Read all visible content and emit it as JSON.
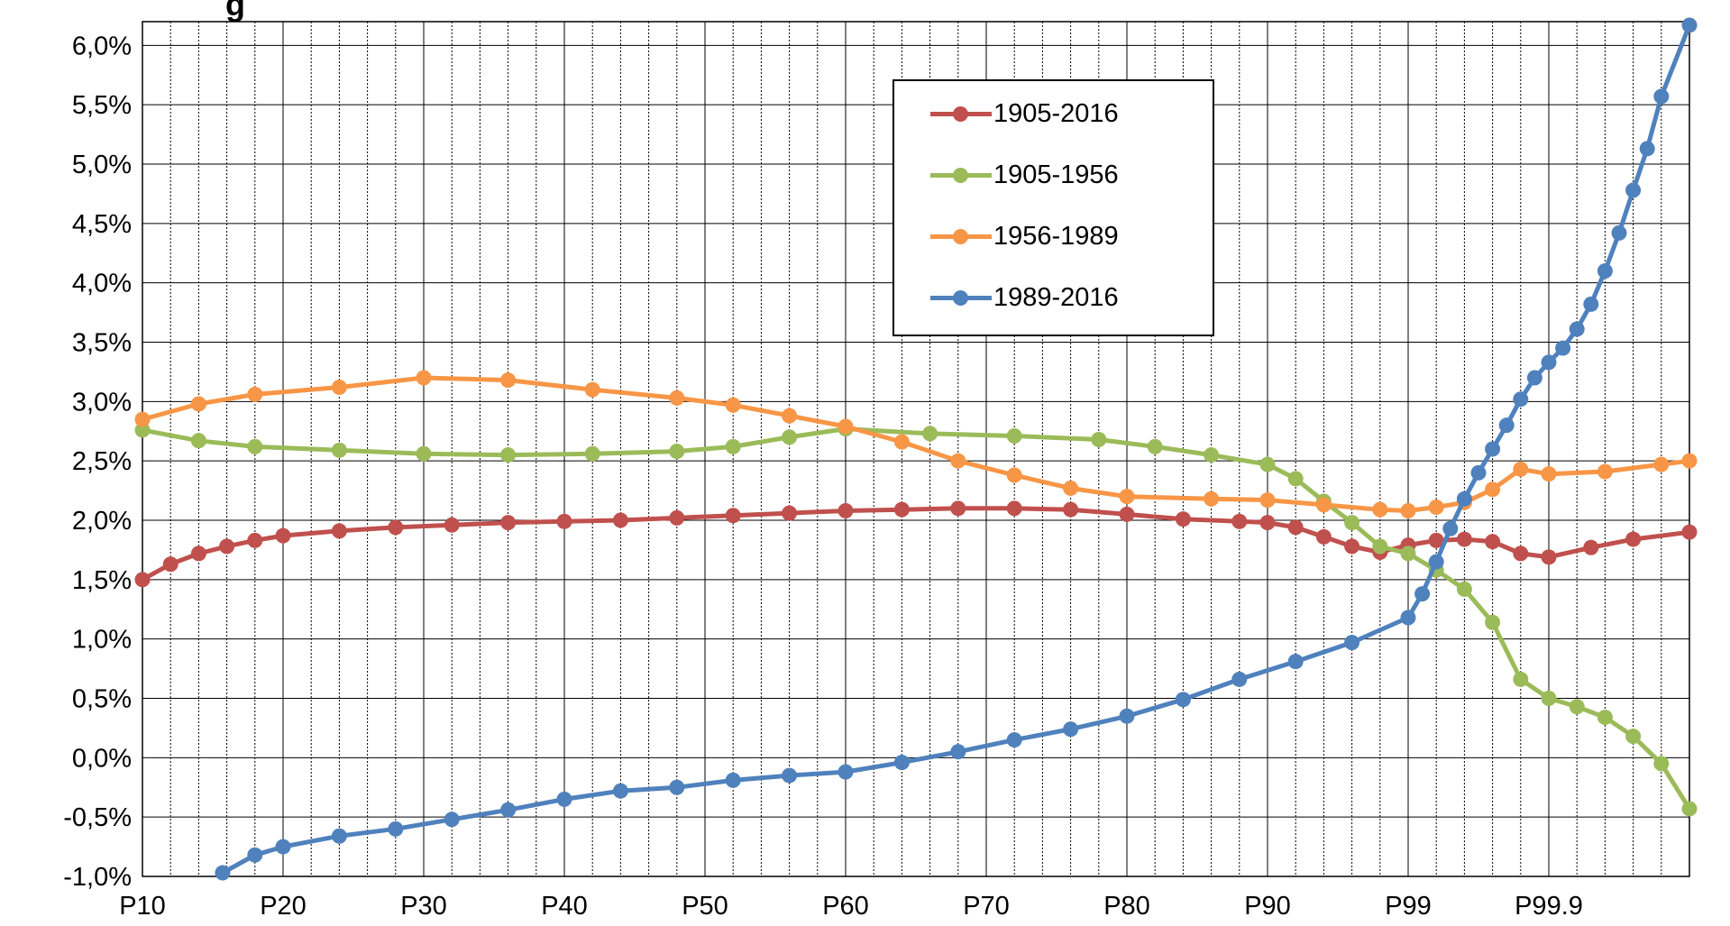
{
  "chart_data": {
    "type": "line",
    "title": "g",
    "x_tick_labels": [
      "P10",
      "P20",
      "P30",
      "P40",
      "P50",
      "P60",
      "P70",
      "P80",
      "P90",
      "P99",
      "P99.9"
    ],
    "y_tick_labels": [
      "-1,0%",
      "-0,5%",
      "0,0%",
      "0,5%",
      "1,0%",
      "1,5%",
      "2,0%",
      "2,5%",
      "3,0%",
      "3,5%",
      "4,0%",
      "4,5%",
      "5,0%",
      "5,5%",
      "6,0%"
    ],
    "ylim": [
      -1.0,
      6.2
    ],
    "y_unit": "%",
    "grid": true,
    "legend_position": "top-center-right",
    "series": [
      {
        "name": "1905-2016",
        "color": "#C0504D",
        "points": [
          [
            0,
            1.5
          ],
          [
            0.2,
            1.63
          ],
          [
            0.4,
            1.72
          ],
          [
            0.6,
            1.78
          ],
          [
            0.8,
            1.83
          ],
          [
            1,
            1.87
          ],
          [
            1.4,
            1.91
          ],
          [
            1.8,
            1.94
          ],
          [
            2.2,
            1.96
          ],
          [
            2.6,
            1.98
          ],
          [
            3,
            1.99
          ],
          [
            3.4,
            2.0
          ],
          [
            3.8,
            2.02
          ],
          [
            4.2,
            2.04
          ],
          [
            4.6,
            2.06
          ],
          [
            5,
            2.08
          ],
          [
            5.4,
            2.09
          ],
          [
            5.8,
            2.1
          ],
          [
            6.2,
            2.1
          ],
          [
            6.6,
            2.09
          ],
          [
            7,
            2.05
          ],
          [
            7.4,
            2.01
          ],
          [
            7.8,
            1.99
          ],
          [
            8,
            1.98
          ],
          [
            8.2,
            1.94
          ],
          [
            8.4,
            1.86
          ],
          [
            8.6,
            1.78
          ],
          [
            8.8,
            1.73
          ],
          [
            9,
            1.79
          ],
          [
            9.2,
            1.83
          ],
          [
            9.4,
            1.84
          ],
          [
            9.6,
            1.82
          ],
          [
            9.8,
            1.72
          ],
          [
            10,
            1.69
          ],
          [
            10.3,
            1.77
          ],
          [
            10.6,
            1.84
          ],
          [
            11,
            1.9
          ]
        ]
      },
      {
        "name": "1905-1956",
        "color": "#9BBB59",
        "points": [
          [
            0,
            2.76
          ],
          [
            0.4,
            2.67
          ],
          [
            0.8,
            2.62
          ],
          [
            1.4,
            2.59
          ],
          [
            2,
            2.56
          ],
          [
            2.6,
            2.55
          ],
          [
            3.2,
            2.56
          ],
          [
            3.8,
            2.58
          ],
          [
            4.2,
            2.62
          ],
          [
            4.6,
            2.7
          ],
          [
            5,
            2.77
          ],
          [
            5.6,
            2.73
          ],
          [
            6.2,
            2.71
          ],
          [
            6.8,
            2.68
          ],
          [
            7.2,
            2.62
          ],
          [
            7.6,
            2.55
          ],
          [
            8,
            2.47
          ],
          [
            8.2,
            2.35
          ],
          [
            8.4,
            2.16
          ],
          [
            8.6,
            1.98
          ],
          [
            8.8,
            1.78
          ],
          [
            9,
            1.72
          ],
          [
            9.2,
            1.58
          ],
          [
            9.4,
            1.42
          ],
          [
            9.6,
            1.14
          ],
          [
            9.8,
            0.66
          ],
          [
            10,
            0.5
          ],
          [
            10.2,
            0.43
          ],
          [
            10.4,
            0.34
          ],
          [
            10.6,
            0.18
          ],
          [
            10.8,
            -0.05
          ],
          [
            11,
            -0.43
          ]
        ]
      },
      {
        "name": "1956-1989",
        "color": "#F79646",
        "points": [
          [
            0,
            2.85
          ],
          [
            0.4,
            2.98
          ],
          [
            0.8,
            3.06
          ],
          [
            1.4,
            3.12
          ],
          [
            2,
            3.2
          ],
          [
            2.6,
            3.18
          ],
          [
            3.2,
            3.1
          ],
          [
            3.8,
            3.03
          ],
          [
            4.2,
            2.97
          ],
          [
            4.6,
            2.88
          ],
          [
            5,
            2.79
          ],
          [
            5.4,
            2.66
          ],
          [
            5.8,
            2.5
          ],
          [
            6.2,
            2.38
          ],
          [
            6.6,
            2.27
          ],
          [
            7,
            2.2
          ],
          [
            7.6,
            2.18
          ],
          [
            8,
            2.17
          ],
          [
            8.4,
            2.13
          ],
          [
            8.8,
            2.09
          ],
          [
            9,
            2.08
          ],
          [
            9.2,
            2.11
          ],
          [
            9.4,
            2.15
          ],
          [
            9.6,
            2.26
          ],
          [
            9.8,
            2.43
          ],
          [
            10,
            2.39
          ],
          [
            10.4,
            2.41
          ],
          [
            10.8,
            2.47
          ],
          [
            11,
            2.5
          ]
        ]
      },
      {
        "name": "1989-2016",
        "color": "#4F81BD",
        "points": [
          [
            0.57,
            -0.97
          ],
          [
            0.8,
            -0.82
          ],
          [
            1,
            -0.75
          ],
          [
            1.4,
            -0.66
          ],
          [
            1.8,
            -0.6
          ],
          [
            2.2,
            -0.52
          ],
          [
            2.6,
            -0.44
          ],
          [
            3,
            -0.35
          ],
          [
            3.4,
            -0.28
          ],
          [
            3.8,
            -0.25
          ],
          [
            4.2,
            -0.19
          ],
          [
            4.6,
            -0.15
          ],
          [
            5,
            -0.12
          ],
          [
            5.4,
            -0.04
          ],
          [
            5.8,
            0.05
          ],
          [
            6.2,
            0.15
          ],
          [
            6.6,
            0.24
          ],
          [
            7,
            0.35
          ],
          [
            7.4,
            0.49
          ],
          [
            7.8,
            0.66
          ],
          [
            8.2,
            0.81
          ],
          [
            8.6,
            0.97
          ],
          [
            9,
            1.18
          ],
          [
            9.1,
            1.38
          ],
          [
            9.2,
            1.65
          ],
          [
            9.3,
            1.93
          ],
          [
            9.4,
            2.18
          ],
          [
            9.5,
            2.4
          ],
          [
            9.6,
            2.6
          ],
          [
            9.7,
            2.8
          ],
          [
            9.8,
            3.02
          ],
          [
            9.9,
            3.2
          ],
          [
            10,
            3.33
          ],
          [
            10.1,
            3.45
          ],
          [
            10.2,
            3.61
          ],
          [
            10.3,
            3.82
          ],
          [
            10.4,
            4.1
          ],
          [
            10.5,
            4.42
          ],
          [
            10.6,
            4.78
          ],
          [
            10.7,
            5.13
          ],
          [
            10.8,
            5.57
          ],
          [
            11,
            6.17
          ]
        ]
      }
    ]
  }
}
